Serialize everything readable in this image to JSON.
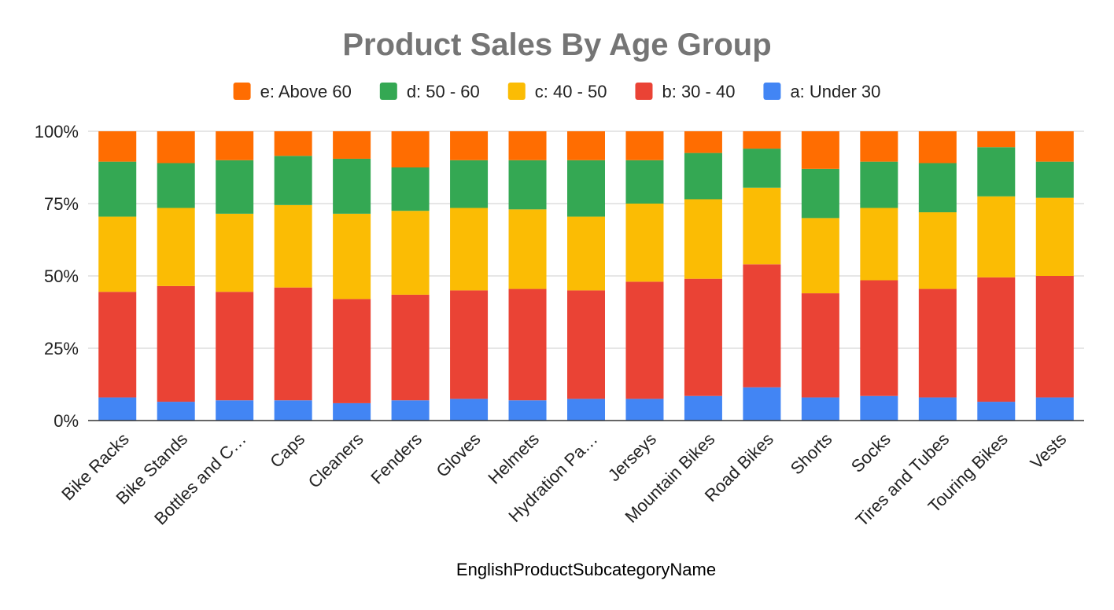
{
  "chart_data": {
    "type": "bar",
    "stacked": "percent",
    "title": "Product Sales By Age Group",
    "xlabel": "EnglishProductSubcategoryName",
    "ylabel": "",
    "ylim": [
      0,
      100
    ],
    "y_ticks": [
      "0%",
      "25%",
      "50%",
      "75%",
      "100%"
    ],
    "grid": true,
    "legend_position": "top",
    "legend_order": [
      "e: Above 60",
      "d: 50 - 60",
      "c: 40 - 50",
      "b: 30 - 40",
      "a: Under 30"
    ],
    "categories": [
      "Bike Racks",
      "Bike Stands",
      "Bottles and C…",
      "Caps",
      "Cleaners",
      "Fenders",
      "Gloves",
      "Helmets",
      "Hydration Pa…",
      "Jerseys",
      "Mountain Bikes",
      "Road Bikes",
      "Shorts",
      "Socks",
      "Tires and Tubes",
      "Touring Bikes",
      "Vests"
    ],
    "series": [
      {
        "name": "a: Under 30",
        "color": "#4285F4",
        "values": [
          8,
          6.5,
          7,
          7,
          6,
          7,
          7.5,
          7,
          7.5,
          7.5,
          8.5,
          11.5,
          8,
          8.5,
          8,
          6.5,
          8
        ]
      },
      {
        "name": "b: 30 - 40",
        "color": "#EA4335",
        "values": [
          36.5,
          40,
          37.5,
          39,
          36,
          36.5,
          37.5,
          38.5,
          37.5,
          40.5,
          40.5,
          42.5,
          36,
          40,
          37.5,
          43,
          42
        ]
      },
      {
        "name": "c: 40 - 50",
        "color": "#FBBC04",
        "values": [
          26,
          27,
          27,
          28.5,
          29.5,
          29,
          28.5,
          27.5,
          25.5,
          27,
          27.5,
          26.5,
          26,
          25,
          26.5,
          28,
          27
        ]
      },
      {
        "name": "d: 50 - 60",
        "color": "#34A853",
        "values": [
          19,
          15.5,
          18.5,
          17,
          19,
          15,
          16.5,
          17,
          19.5,
          15,
          16,
          13.5,
          17,
          16,
          17,
          17,
          12.5
        ]
      },
      {
        "name": "e: Above 60",
        "color": "#FF6D01",
        "values": [
          10.5,
          11,
          10,
          8.5,
          9.5,
          12.5,
          10,
          10,
          10,
          10,
          7.5,
          6,
          13,
          10.5,
          11,
          5.5,
          10.5
        ]
      }
    ]
  }
}
